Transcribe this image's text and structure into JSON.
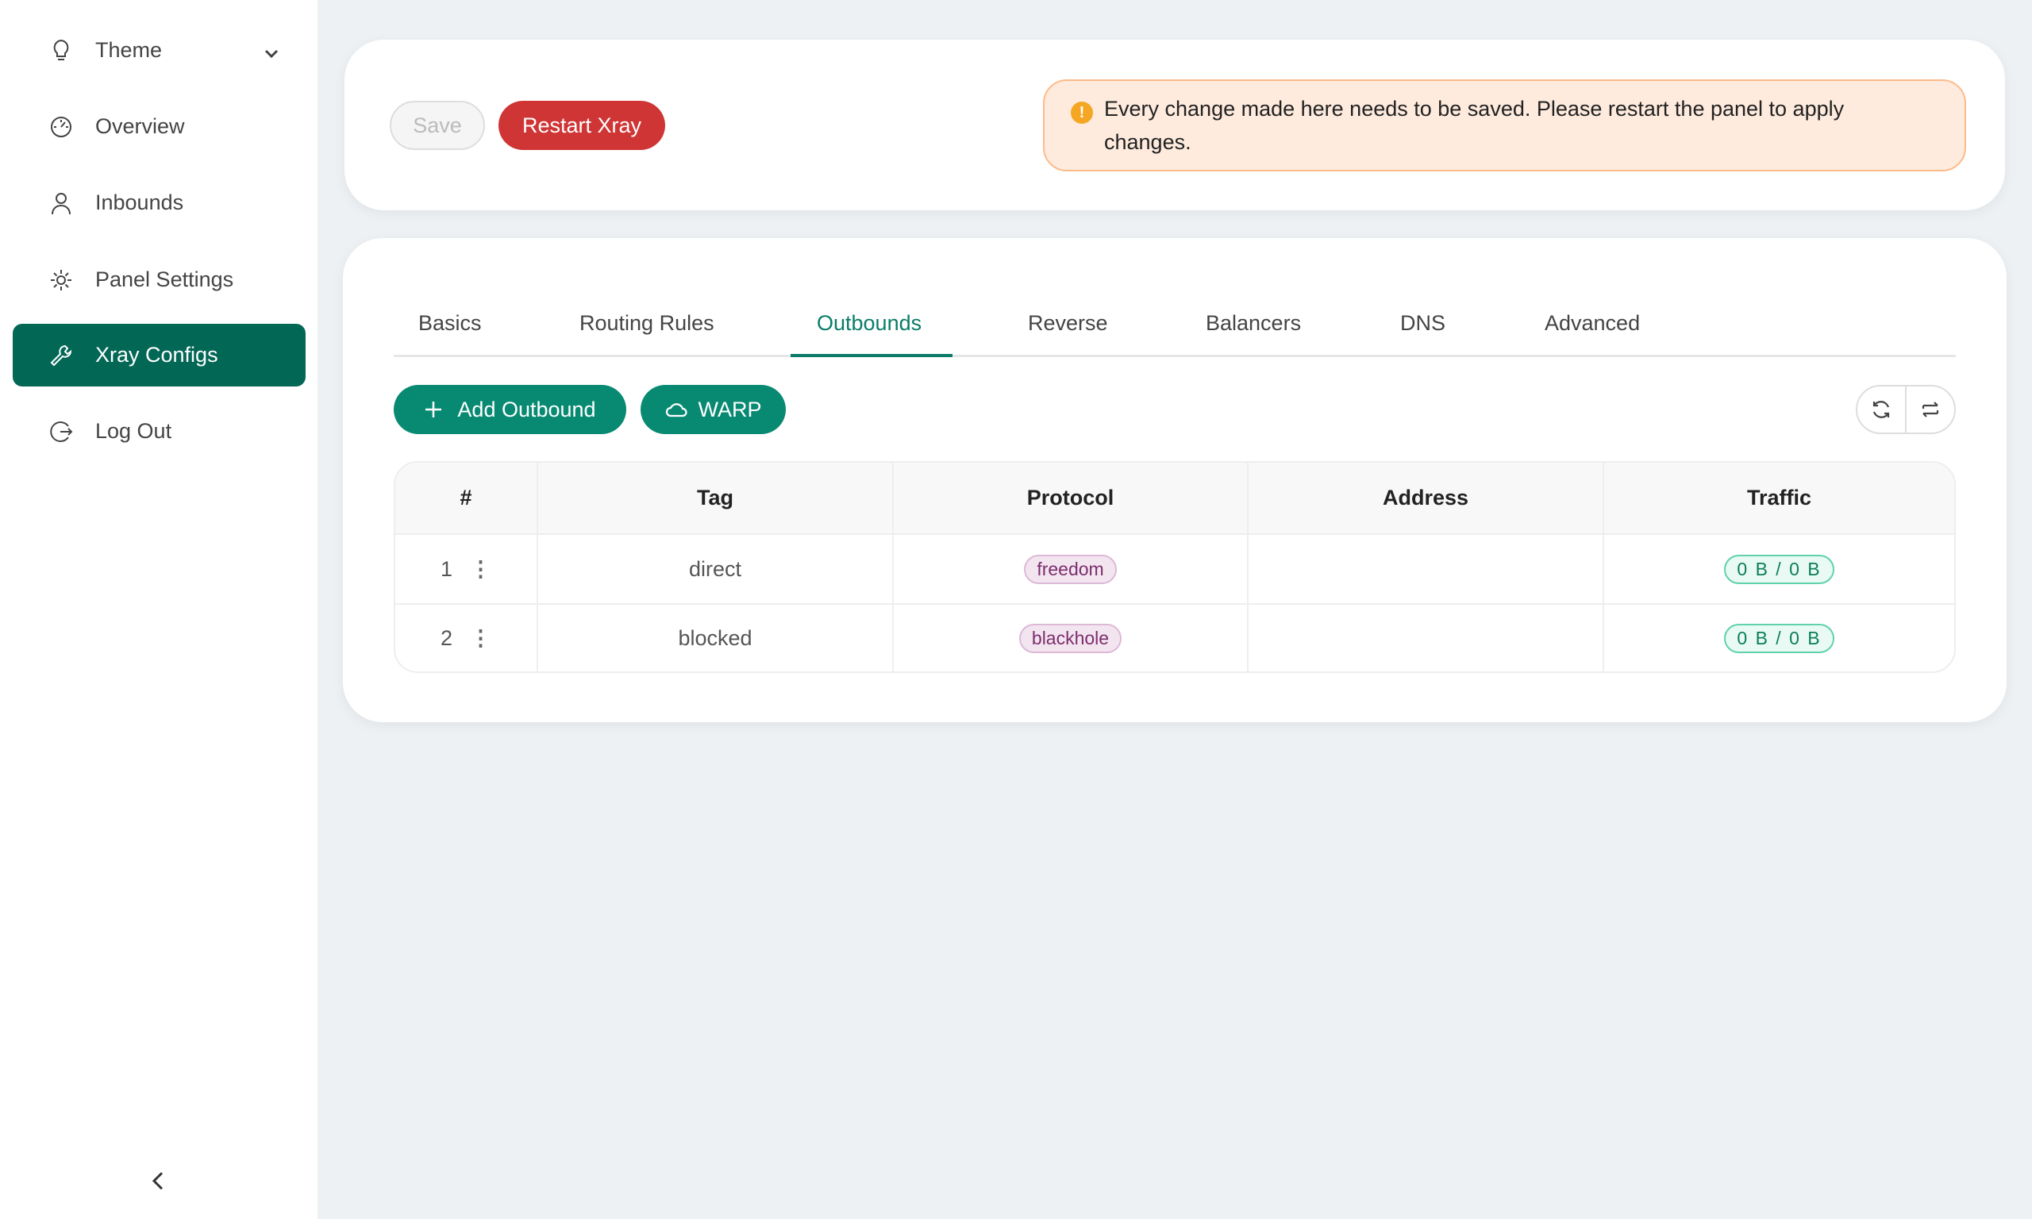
{
  "sidebar": {
    "items": [
      {
        "label": "Theme",
        "icon": "bulb-icon"
      },
      {
        "label": "Overview",
        "icon": "dashboard-icon"
      },
      {
        "label": "Inbounds",
        "icon": "user-icon"
      },
      {
        "label": "Panel Settings",
        "icon": "gear-icon"
      },
      {
        "label": "Xray Configs",
        "icon": "wrench-icon",
        "active": true
      },
      {
        "label": "Log Out",
        "icon": "logout-icon"
      }
    ]
  },
  "toolbar": {
    "save_label": "Save",
    "restart_label": "Restart Xray",
    "alert": "Every change made here needs to be saved. Please restart the panel to apply changes."
  },
  "tabs": [
    {
      "label": "Basics"
    },
    {
      "label": "Routing Rules"
    },
    {
      "label": "Outbounds",
      "active": true
    },
    {
      "label": "Reverse"
    },
    {
      "label": "Balancers"
    },
    {
      "label": "DNS"
    },
    {
      "label": "Advanced"
    }
  ],
  "actions": {
    "add_label": "Add Outbound",
    "warp_label": "WARP"
  },
  "table": {
    "headers": [
      "#",
      "Tag",
      "Protocol",
      "Address",
      "Traffic"
    ],
    "rows": [
      {
        "num": "1",
        "tag": "direct",
        "protocol": "freedom",
        "address": "",
        "traffic": "0 B / 0 B"
      },
      {
        "num": "2",
        "tag": "blocked",
        "protocol": "blackhole",
        "address": "",
        "traffic": "0 B / 0 B"
      }
    ]
  },
  "colors": {
    "accent": "#088a72",
    "active_nav": "#036756",
    "danger": "#d03535"
  }
}
